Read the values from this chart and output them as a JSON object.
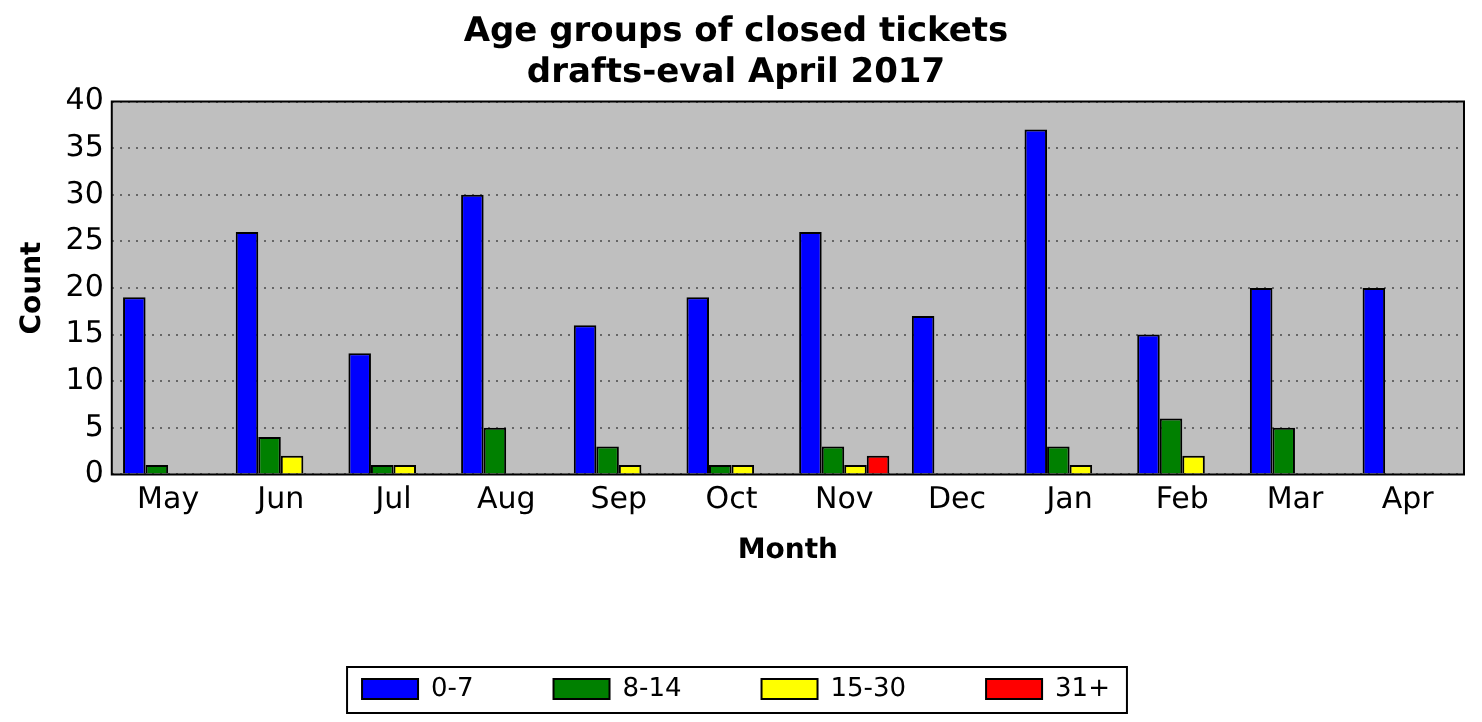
{
  "chart_data": {
    "type": "bar",
    "title": "Age groups of closed tickets",
    "subtitle": "drafts-eval April 2017",
    "xlabel": "Month",
    "ylabel": "Count",
    "categories": [
      "May",
      "Jun",
      "Jul",
      "Aug",
      "Sep",
      "Oct",
      "Nov",
      "Dec",
      "Jan",
      "Feb",
      "Mar",
      "Apr"
    ],
    "series": [
      {
        "name": "0-7",
        "color": "#0000ff",
        "values": [
          19,
          26,
          13,
          30,
          16,
          19,
          26,
          17,
          37,
          15,
          20,
          20
        ]
      },
      {
        "name": "8-14",
        "color": "#008000",
        "values": [
          1,
          4,
          1,
          5,
          3,
          1,
          3,
          0,
          3,
          6,
          5,
          0
        ]
      },
      {
        "name": "15-30",
        "color": "#ffff00",
        "values": [
          0,
          2,
          1,
          0,
          1,
          1,
          1,
          0,
          1,
          2,
          0,
          0
        ]
      },
      {
        "name": "31+",
        "color": "#ff0000",
        "values": [
          0,
          0,
          0,
          0,
          0,
          0,
          2,
          0,
          0,
          0,
          0,
          0
        ]
      }
    ],
    "ylim": [
      0,
      40
    ],
    "yticks": [
      0,
      5,
      10,
      15,
      20,
      25,
      30,
      35,
      40
    ],
    "grid": "y",
    "legend": "bottom"
  }
}
